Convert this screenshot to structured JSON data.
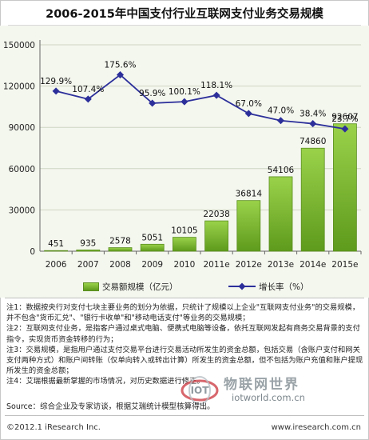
{
  "title": "2006-2015年中国支付行业互联网支付业务交易规模",
  "chart_data": {
    "type": "bar",
    "categories": [
      "2006",
      "2007",
      "2008",
      "2009",
      "2010",
      "2011e",
      "2012e",
      "2013e",
      "2014e",
      "2015e"
    ],
    "series": [
      {
        "name": "交易额规模（亿元）",
        "type": "bar",
        "axis": "left",
        "values": [
          451,
          935,
          2578,
          5051,
          10105,
          22038,
          36814,
          54106,
          74860,
          92607
        ]
      },
      {
        "name": "增长率（%）",
        "type": "line",
        "axis": "right",
        "values": [
          129.9,
          107.4,
          175.6,
          95.9,
          100.1,
          118.1,
          67.0,
          47.0,
          38.4,
          23.7
        ],
        "labels": [
          "129.9%",
          "107.4%",
          "175.6%",
          "95.9%",
          "100.1%",
          "118.1%",
          "67.0%",
          "47.0%",
          "38.4%",
          "23.7%"
        ]
      }
    ],
    "yticks": [
      "0",
      "30000",
      "60000",
      "90000",
      "120000",
      "150000"
    ],
    "ylim": [
      0,
      150000
    ],
    "y2lim": [
      -320,
      260
    ],
    "legend_position": "bottom",
    "colors": {
      "bar_top": "#9ad24a",
      "bar_bottom": "#5e9a1c",
      "bar_edge": "#5a8e1e",
      "line": "#2c2f9a",
      "plot_bg": "#f4f7ee",
      "grid": "#cfd6c4"
    }
  },
  "legend": {
    "bar": "交易额规模（亿元）",
    "line": "增长率（%）"
  },
  "notes": [
    "注1：数据按央行对支付七块主要业务的划分为依据，只统计了规模以上企业\"互联网支付业务\"的交易规模，并不包含\"货币汇兑\"、\"银行卡收单\"和\"移动电话支付\"等业务的交易规模；",
    "注2：互联网支付业务，是指客户通过桌式电脑、便携式电脑等设备，依托互联网发起有商务交易背景的支付指令，实现货币资金转移的行为；",
    "注3：交易规模，是指用户通过支付交易平台进行交易活动所发生的资金总额，包括交易（含账户支付和网关支付两种方式）和账户间转账（仅单向转入或转出计算）所发生的资金总额，但不包括为账户充值和账户提现所发生的资金总额；",
    "注4：艾瑞根据最新掌握的市场情况，对历史数据进行修正。"
  ],
  "source": "Source：综合企业及专家访谈，根据艾瑞统计模型核算得出。",
  "footer": {
    "copyright": "©2012.1 iResearch Inc.",
    "url": "www.iresearch.com.cn"
  },
  "watermark": {
    "brand": "物联网世界",
    "url": "iotworld.com.cn",
    "logo_text": "IOT"
  }
}
